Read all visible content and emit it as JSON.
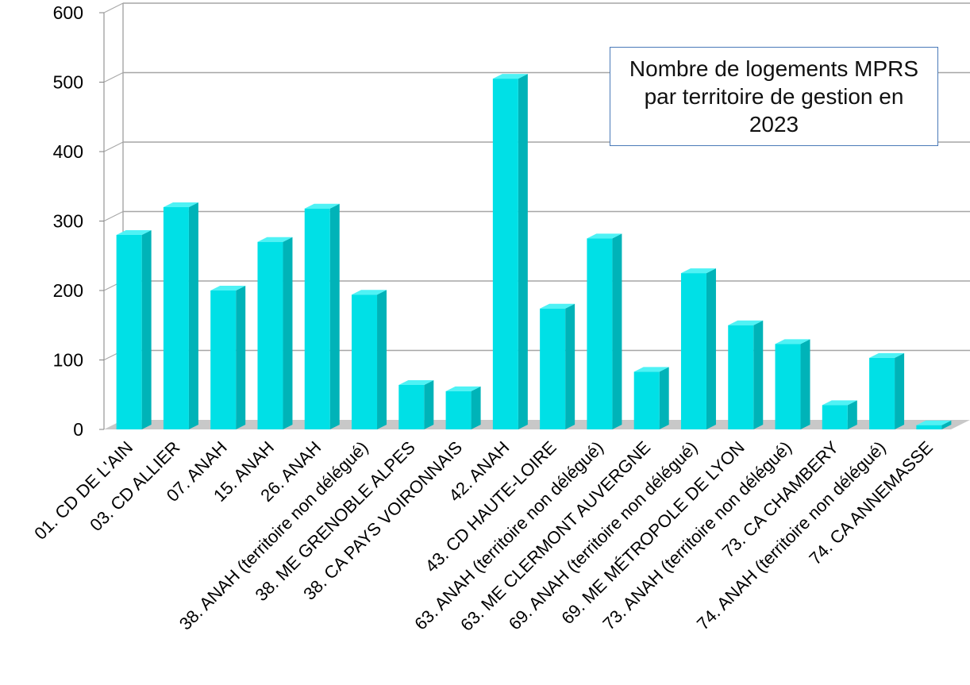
{
  "chart_data": {
    "type": "bar",
    "title": "Nombre de logements MPRS par territoire de gestion en 2023",
    "xlabel": "",
    "ylabel": "",
    "ylim": [
      0,
      600
    ],
    "yticks": [
      "0",
      "100",
      "200",
      "300",
      "400",
      "500",
      "600"
    ],
    "grid": true,
    "legend": "none",
    "style": "3d-columns",
    "categories": [
      "01. CD DE L'AIN",
      "03. CD ALLIER",
      "07. ANAH",
      "15. ANAH",
      "26. ANAH",
      "38. ANAH (territoire non délégué)",
      "38. ME GRENOBLE ALPES",
      "38. CA PAYS VOIRONNAIS",
      "42. ANAH",
      "43. CD HAUTE-LOIRE",
      "63. ANAH  (territoire non délégué)",
      "63. ME CLERMONT AUVERGNE",
      "69. ANAH  (territoire non délégué)",
      "69. ME MÉTROPOLE DE LYON",
      "73. ANAH  (territoire non délégué)",
      "73. CA CHAMBERY",
      "74. ANAH  (territoire non délégué)",
      "74. CA ANNEMASSE"
    ],
    "values": [
      280,
      320,
      200,
      270,
      318,
      194,
      64,
      55,
      505,
      174,
      275,
      83,
      225,
      150,
      123,
      35,
      103,
      6
    ],
    "colors": {
      "bar_front": "#00e0e6",
      "bar_side": "#00b3b8",
      "bar_top": "#4ff2f5",
      "floor": "#c8c8c8",
      "grid": "#a6a6a6",
      "axis": "#808080",
      "text": "#000000"
    }
  }
}
